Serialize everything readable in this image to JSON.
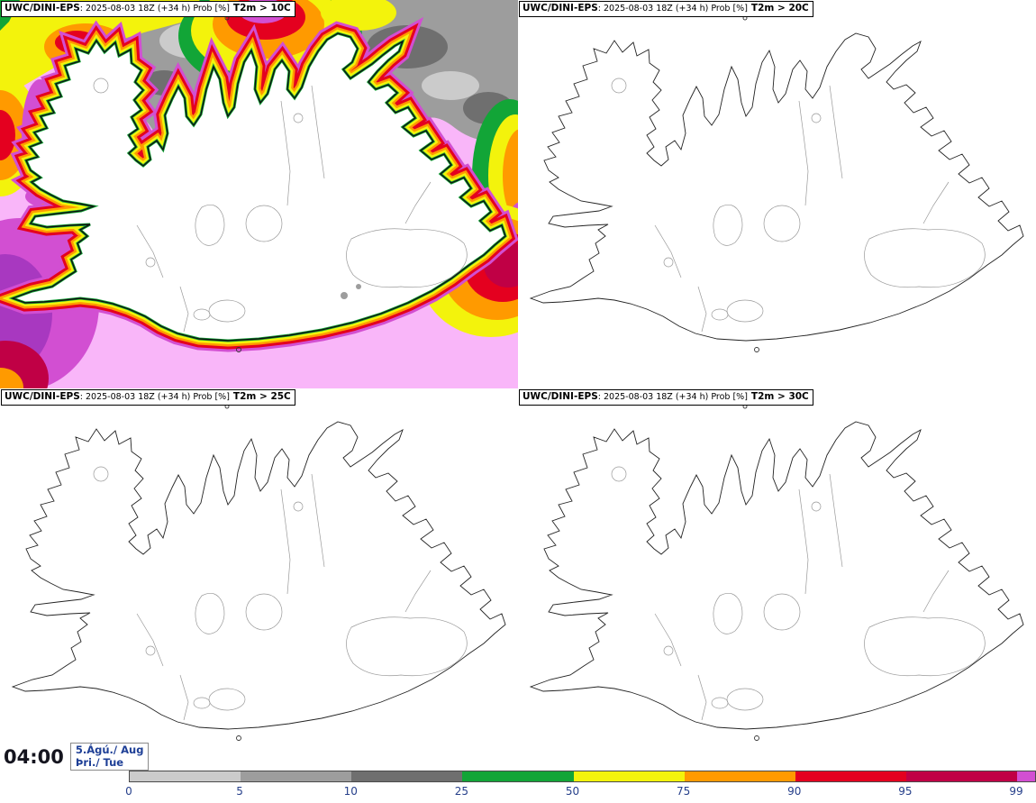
{
  "panels": [
    {
      "model": "UWC/DINI-EPS",
      "run_info": ": 2025-08-03 18Z (+34 h) Prob [%]",
      "threshold": "T2m > 10C"
    },
    {
      "model": "UWC/DINI-EPS",
      "run_info": ": 2025-08-03 18Z (+34 h) Prob [%]",
      "threshold": "T2m > 20C"
    },
    {
      "model": "UWC/DINI-EPS",
      "run_info": ": 2025-08-03 18Z (+34 h) Prob [%]",
      "threshold": "T2m > 25C"
    },
    {
      "model": "UWC/DINI-EPS",
      "run_info": ": 2025-08-03 18Z (+34 h) Prob [%]",
      "threshold": "T2m > 30C"
    }
  ],
  "footer": {
    "valid_time": "04:00",
    "date": "5.Ágú./ Aug",
    "weekday": "Þri./ Tue"
  },
  "colorbar": {
    "labels": [
      "0",
      "5",
      "10",
      "25",
      "50",
      "75",
      "90",
      "95",
      "99"
    ],
    "segment_colors": [
      "#cbcbcb",
      "#9d9d9d",
      "#6f6f6f",
      "#12a537",
      "#f3f30c",
      "#ff9a00",
      "#e4001f",
      "#c00045"
    ],
    "end_cap_color": "#d24fd2"
  },
  "map_palette": {
    "prob_0_5": "#cbcbcb",
    "prob_5_10": "#9d9d9d",
    "prob_10_25": "#6f6f6f",
    "prob_25_50": "#12a537",
    "prob_50_75": "#f3f30c",
    "prob_75_90": "#ff9a00",
    "prob_90_95": "#e4001f",
    "prob_95_99": "#c00045",
    "prob_99": "#d24fd2",
    "prob_99_plus_ocean": "#f9b6f9"
  }
}
